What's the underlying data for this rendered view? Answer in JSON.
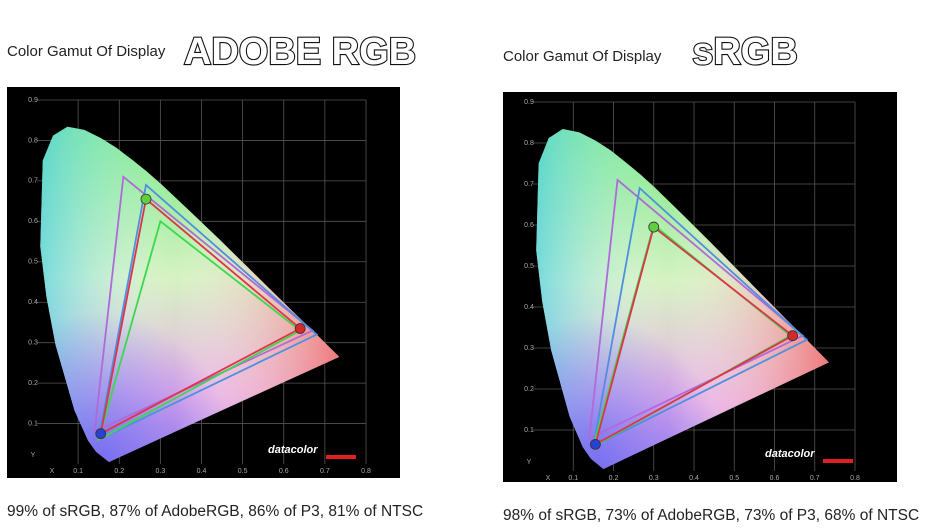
{
  "chart_data": [
    {
      "type": "gamut",
      "title": "Color Gamut Of Display",
      "subtitle": "ADOBE RGB",
      "caption": "99% of sRGB, 87% of AdobeRGB, 86% of P3, 81% of NTSC",
      "x_label": "X",
      "y_label": "Y",
      "brand": "datacolor",
      "xlim": [
        0,
        0.8
      ],
      "ylim": [
        0,
        0.9
      ],
      "xticks": [
        0.1,
        0.2,
        0.3,
        0.4,
        0.5,
        0.6,
        0.7,
        0.8
      ],
      "yticks": [
        0.1,
        0.2,
        0.3,
        0.4,
        0.5,
        0.6,
        0.7,
        0.8,
        0.9
      ],
      "grid": true,
      "series": [
        {
          "color": "#b06ad8",
          "x": [
            0.67,
            0.21,
            0.14
          ],
          "values": [
            0.33,
            0.71,
            0.08
          ]
        },
        {
          "color": "#4f8fe0",
          "x": [
            0.68,
            0.265,
            0.15
          ],
          "values": [
            0.32,
            0.69,
            0.06
          ]
        },
        {
          "color": "#3cd84c",
          "x": [
            0.64,
            0.3,
            0.15
          ],
          "values": [
            0.33,
            0.6,
            0.06
          ]
        },
        {
          "color": "#e0334a",
          "x": [
            0.64,
            0.265,
            0.155
          ],
          "values": [
            0.335,
            0.655,
            0.075
          ],
          "markers": [
            "#d42a2a",
            "#5fcf3f",
            "#2b3fd0"
          ]
        }
      ]
    },
    {
      "type": "gamut",
      "title": "Color Gamut Of Display",
      "subtitle": "sRGB",
      "caption": "98% of sRGB, 73% of AdobeRGB, 73% of P3, 68% of NTSC",
      "x_label": "X",
      "y_label": "Y",
      "brand": "datacolor",
      "xlim": [
        0,
        0.8
      ],
      "ylim": [
        0,
        0.9
      ],
      "xticks": [
        0.1,
        0.2,
        0.3,
        0.4,
        0.5,
        0.6,
        0.7,
        0.8
      ],
      "yticks": [
        0.1,
        0.2,
        0.3,
        0.4,
        0.5,
        0.6,
        0.7,
        0.8,
        0.9
      ],
      "grid": true,
      "series": [
        {
          "color": "#b06ad8",
          "x": [
            0.67,
            0.21,
            0.14
          ],
          "values": [
            0.33,
            0.71,
            0.08
          ]
        },
        {
          "color": "#4f8fe0",
          "x": [
            0.68,
            0.265,
            0.15
          ],
          "values": [
            0.32,
            0.69,
            0.06
          ]
        },
        {
          "color": "#3cd84c",
          "x": [
            0.64,
            0.3,
            0.15
          ],
          "values": [
            0.33,
            0.6,
            0.06
          ]
        },
        {
          "color": "#e0334a",
          "x": [
            0.645,
            0.3,
            0.155
          ],
          "values": [
            0.33,
            0.595,
            0.065
          ],
          "markers": [
            "#d42a2a",
            "#5fcf3f",
            "#2b3fd0"
          ]
        }
      ]
    }
  ]
}
